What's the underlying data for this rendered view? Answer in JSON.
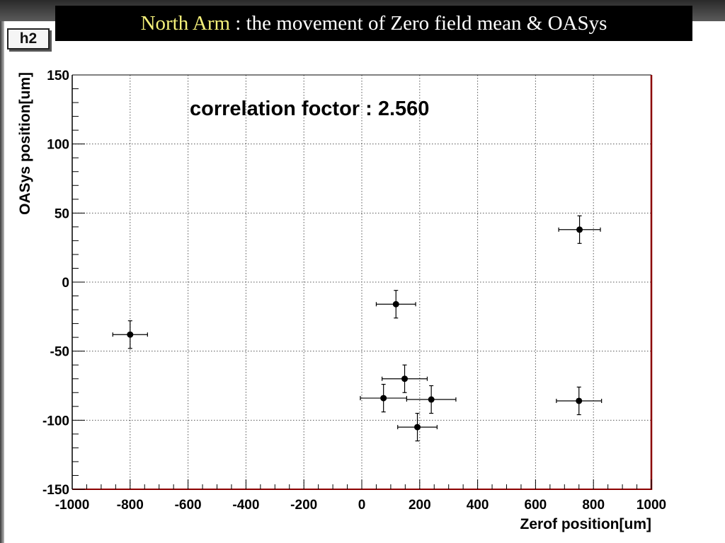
{
  "header": {
    "title_highlight": "North Arm",
    "title_rest": " : the movement of Zero field mean & OASys"
  },
  "hist_label": "h2",
  "colors": {
    "title_highlight": "#f4f07a",
    "frame_right": "#8b0000",
    "frame_bottom": "#8b0000"
  },
  "chart_data": {
    "type": "scatter",
    "xlabel": "Zerof position[um]",
    "ylabel": "OASys position[um]",
    "xlim": [
      -1000,
      1000
    ],
    "ylim": [
      -150,
      150
    ],
    "xticks": [
      -1000,
      -800,
      -600,
      -400,
      -200,
      0,
      200,
      400,
      600,
      800,
      1000
    ],
    "yticks": [
      -150,
      -100,
      -50,
      0,
      50,
      100,
      150
    ],
    "grid": true,
    "annotation": "correlation foctor : 2.560",
    "points": [
      {
        "x": -800,
        "y": -38,
        "xerr": 60,
        "yerr": 10
      },
      {
        "x": 118,
        "y": -16,
        "xerr": 68,
        "yerr": 10
      },
      {
        "x": 148,
        "y": -70,
        "xerr": 78,
        "yerr": 10
      },
      {
        "x": 75,
        "y": -84,
        "xerr": 80,
        "yerr": 10
      },
      {
        "x": 240,
        "y": -85,
        "xerr": 85,
        "yerr": 10
      },
      {
        "x": 192,
        "y": -105,
        "xerr": 68,
        "yerr": 10
      },
      {
        "x": 752,
        "y": 38,
        "xerr": 72,
        "yerr": 10
      },
      {
        "x": 750,
        "y": -86,
        "xerr": 78,
        "yerr": 10
      }
    ]
  }
}
